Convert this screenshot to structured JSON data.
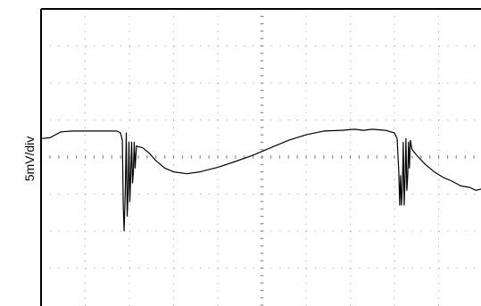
{
  "chart_data": {
    "type": "line",
    "title": "",
    "xlabel": "",
    "ylabel": "5mV/div",
    "grid": true,
    "grid_style": "dotted",
    "x_divisions": 10,
    "y_divisions": 8,
    "xlim": [
      0,
      10
    ],
    "ylim": [
      -4,
      4
    ],
    "trace_color": "#000000",
    "series": [
      {
        "points": [
          [
            0.0,
            0.5
          ],
          [
            0.2,
            0.52
          ],
          [
            0.45,
            0.68
          ],
          [
            0.7,
            0.7
          ],
          [
            0.95,
            0.7
          ],
          [
            1.2,
            0.7
          ],
          [
            1.5,
            0.7
          ],
          [
            1.72,
            0.7
          ],
          [
            1.8,
            0.65
          ],
          [
            1.84,
            0.45
          ],
          [
            1.86,
            -1.3
          ],
          [
            1.88,
            -2.0
          ],
          [
            1.91,
            -0.8
          ],
          [
            1.93,
            0.65
          ],
          [
            1.95,
            -1.6
          ],
          [
            1.97,
            -1.0
          ],
          [
            1.99,
            0.4
          ],
          [
            2.01,
            -1.2
          ],
          [
            2.03,
            -0.5
          ],
          [
            2.05,
            0.4
          ],
          [
            2.07,
            -0.7
          ],
          [
            2.09,
            -0.4
          ],
          [
            2.11,
            0.4
          ],
          [
            2.13,
            -0.3
          ],
          [
            2.16,
            0.3
          ],
          [
            2.2,
            0.28
          ],
          [
            2.3,
            0.25
          ],
          [
            2.45,
            0.1
          ],
          [
            2.6,
            -0.1
          ],
          [
            2.8,
            -0.3
          ],
          [
            3.0,
            -0.4
          ],
          [
            3.3,
            -0.45
          ],
          [
            3.6,
            -0.4
          ],
          [
            4.0,
            -0.28
          ],
          [
            4.4,
            -0.12
          ],
          [
            4.8,
            0.05
          ],
          [
            5.2,
            0.25
          ],
          [
            5.6,
            0.45
          ],
          [
            6.0,
            0.6
          ],
          [
            6.4,
            0.7
          ],
          [
            6.8,
            0.72
          ],
          [
            7.1,
            0.75
          ],
          [
            7.3,
            0.72
          ],
          [
            7.5,
            0.75
          ],
          [
            7.8,
            0.72
          ],
          [
            8.0,
            0.65
          ],
          [
            8.06,
            0.5
          ],
          [
            8.1,
            -0.4
          ],
          [
            8.12,
            -1.3
          ],
          [
            8.14,
            -0.5
          ],
          [
            8.16,
            -1.3
          ],
          [
            8.18,
            -0.8
          ],
          [
            8.2,
            0.4
          ],
          [
            8.22,
            -1.3
          ],
          [
            8.24,
            -0.6
          ],
          [
            8.26,
            0.5
          ],
          [
            8.28,
            -0.9
          ],
          [
            8.3,
            -0.5
          ],
          [
            8.32,
            0.4
          ],
          [
            8.34,
            -0.3
          ],
          [
            8.36,
            0.45
          ],
          [
            8.4,
            0.2
          ],
          [
            8.5,
            0.05
          ],
          [
            8.7,
            -0.2
          ],
          [
            8.9,
            -0.4
          ],
          [
            9.1,
            -0.55
          ],
          [
            9.3,
            -0.65
          ],
          [
            9.5,
            -0.78
          ],
          [
            9.7,
            -0.82
          ],
          [
            9.85,
            -0.9
          ],
          [
            10.0,
            -0.85
          ]
        ]
      }
    ]
  }
}
